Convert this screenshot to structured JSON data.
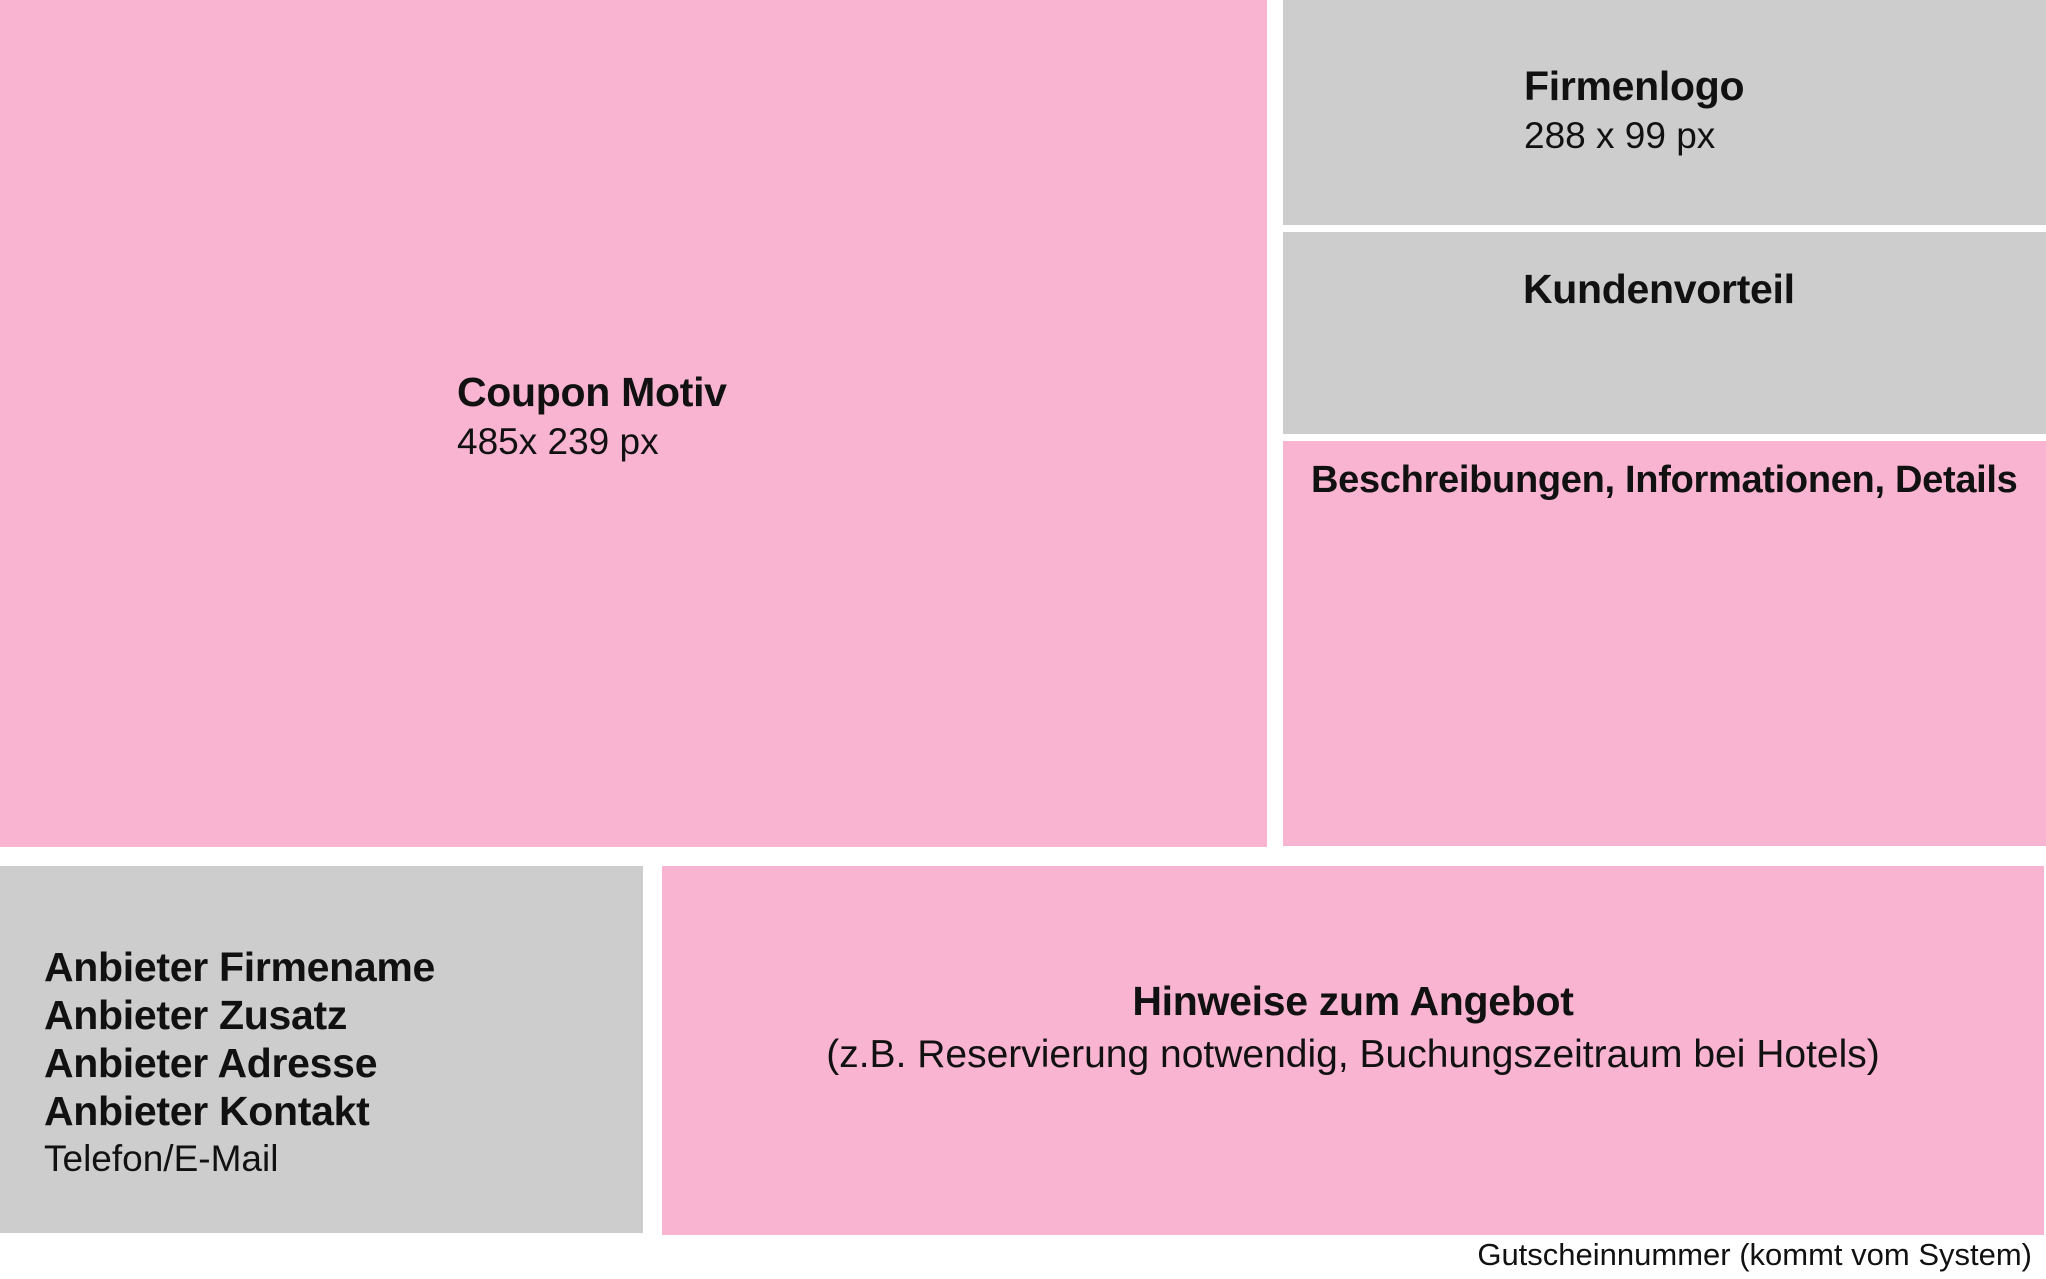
{
  "coupon": {
    "title": "Coupon Motiv",
    "size": "485x 239 px"
  },
  "logo": {
    "title": "Firmenlogo",
    "size": "288 x 99 px"
  },
  "kundenvorteil": {
    "title": "Kundenvorteil"
  },
  "beschreibung": {
    "title": "Beschreibungen, Informationen, Details"
  },
  "anbieter": {
    "firmenname": "Anbieter Firmename",
    "zusatz": "Anbieter Zusatz",
    "adresse": "Anbieter Adresse",
    "kontakt": "Anbieter Kontakt",
    "telefon": "Telefon/E-Mail"
  },
  "hinweise": {
    "title": "Hinweise zum Angebot",
    "example": "(z.B. Reservierung notwendig, Buchungszeitraum bei Hotels)"
  },
  "footer": {
    "gutscheinnummer": "Gutscheinnummer (kommt vom System)"
  },
  "colors": {
    "pink": "#f8b4d0",
    "gray": "#cdcdcd"
  }
}
